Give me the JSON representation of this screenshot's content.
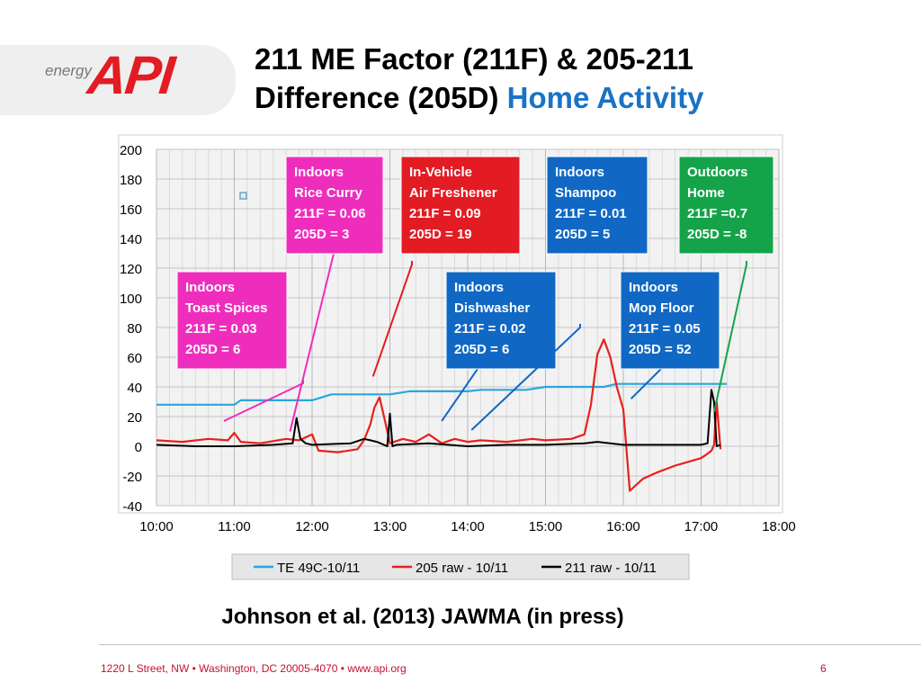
{
  "logo": {
    "small_text": "energy",
    "brand": "API"
  },
  "title": {
    "line1": "211 ME Factor (211F) & 205-211",
    "line2_main": "Difference (205D)",
    "line2_accent": "Home Activity"
  },
  "citation": "Johnson et al. (2013) JAWMA (in press)",
  "footer": {
    "address": "1220 L Street, NW  •  Washington, DC 20005-4070  •  www.api.org",
    "page": "6"
  },
  "colors": {
    "brand_red": "#e31b23",
    "accent_blue": "#1a73c6"
  },
  "chart_data": {
    "type": "line",
    "xlabel": "",
    "ylabel": "",
    "x_ticks": [
      "10:00",
      "11:00",
      "12:00",
      "13:00",
      "14:00",
      "15:00",
      "16:00",
      "17:00",
      "18:00"
    ],
    "xlim": [
      "10:00",
      "18:00"
    ],
    "ylim": [
      -40,
      200
    ],
    "y_ticks": [
      -40,
      -20,
      0,
      20,
      40,
      60,
      80,
      100,
      120,
      140,
      160,
      180,
      200
    ],
    "grid": true,
    "legend_position": "bottom",
    "series": [
      {
        "name": "TE 49C-10/11",
        "color": "#2aa6de",
        "x": [
          "10:00",
          "11:00",
          "11:05",
          "12:00",
          "12:15",
          "13:00",
          "13:15",
          "14:00",
          "14:10",
          "14:45",
          "15:00",
          "15:45",
          "15:55",
          "16:30",
          "16:40",
          "17:20"
        ],
        "y": [
          28,
          28,
          31,
          31,
          35,
          35,
          37,
          37,
          38,
          38,
          40,
          40,
          42,
          42,
          42,
          42
        ]
      },
      {
        "name": "205 raw - 10/11",
        "color": "#e8201c",
        "x": [
          "10:00",
          "10:20",
          "10:40",
          "10:55",
          "11:00",
          "11:05",
          "11:20",
          "11:40",
          "11:50",
          "11:55",
          "12:00",
          "12:05",
          "12:20",
          "12:35",
          "12:40",
          "12:45",
          "12:48",
          "12:52",
          "12:56",
          "13:00",
          "13:10",
          "13:20",
          "13:30",
          "13:40",
          "13:50",
          "14:00",
          "14:10",
          "14:30",
          "14:50",
          "15:00",
          "15:20",
          "15:30",
          "15:35",
          "15:40",
          "15:45",
          "15:50",
          "15:55",
          "16:00",
          "16:05",
          "16:10",
          "16:15",
          "16:25",
          "16:40",
          "17:00",
          "17:05",
          "17:08",
          "17:10",
          "17:12",
          "17:15"
        ],
        "y": [
          4,
          3,
          5,
          4,
          9,
          3,
          2,
          5,
          4,
          6,
          8,
          -3,
          -4,
          -2,
          4,
          15,
          26,
          33,
          18,
          2,
          5,
          3,
          8,
          2,
          5,
          3,
          4,
          3,
          5,
          4,
          5,
          8,
          28,
          62,
          72,
          60,
          40,
          25,
          -30,
          -26,
          -22,
          -18,
          -13,
          -8,
          -5,
          -3,
          1,
          30,
          -2
        ]
      },
      {
        "name": "211 raw - 10/11",
        "color": "#000000",
        "x": [
          "10:00",
          "10:30",
          "11:00",
          "11:30",
          "11:45",
          "11:48",
          "11:51",
          "11:55",
          "12:00",
          "12:30",
          "12:40",
          "12:45",
          "12:50",
          "12:58",
          "13:00",
          "13:02",
          "13:05",
          "13:30",
          "14:00",
          "14:30",
          "15:00",
          "15:30",
          "15:40",
          "15:50",
          "16:00",
          "16:30",
          "17:00",
          "17:05",
          "17:08",
          "17:10",
          "17:12",
          "17:15"
        ],
        "y": [
          1,
          0,
          0,
          1,
          2,
          19,
          5,
          2,
          1,
          2,
          5,
          4,
          3,
          0,
          22,
          0,
          1,
          2,
          0,
          1,
          1,
          2,
          3,
          2,
          1,
          1,
          1,
          2,
          38,
          30,
          0,
          1
        ]
      }
    ],
    "annotations": [
      {
        "label_lines": [
          "Indoors",
          "Toast Spices",
          "211F = 0.03",
          "205D = 6"
        ],
        "color": "#ef2dbd",
        "leader_from": [
          "10:52",
          17
        ]
      },
      {
        "label_lines": [
          "Indoors",
          "Rice Curry",
          "211F = 0.06",
          "205D = 3"
        ],
        "color": "#ef2dbd",
        "leader_from": [
          "11:43",
          10
        ]
      },
      {
        "label_lines": [
          "In-Vehicle",
          "Air Freshener",
          "211F = 0.09",
          "205D = 19"
        ],
        "color": "#e31b23",
        "leader_from": [
          "12:47",
          47
        ]
      },
      {
        "label_lines": [
          "Indoors",
          "Dishwasher",
          "211F = 0.02",
          "205D = 6"
        ],
        "color": "#1068c4",
        "leader_from": [
          "13:40",
          17
        ]
      },
      {
        "label_lines": [
          "Indoors",
          "Shampoo",
          "211F = 0.01",
          "205D = 5"
        ],
        "color": "#1068c4",
        "leader_from": [
          "14:03",
          11
        ]
      },
      {
        "label_lines": [
          "Indoors",
          "Mop Floor",
          "211F = 0.05",
          "205D = 52"
        ],
        "color": "#1068c4",
        "leader_from": [
          "16:06",
          32
        ]
      },
      {
        "label_lines": [
          "Outdoors",
          "Home",
          "211F =0.7",
          "205D = -8"
        ],
        "color": "#15a34a",
        "leader_from": [
          "17:10",
          23
        ]
      }
    ]
  }
}
